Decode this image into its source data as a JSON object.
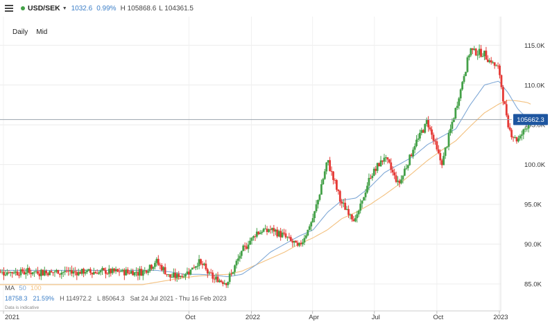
{
  "header": {
    "symbol": "USD/SEK",
    "change": "1032.6",
    "change_pct": "0.99%",
    "high": "H 105868.6",
    "low": "L 104361.5"
  },
  "controls": {
    "interval": "Daily",
    "price_type": "Mid"
  },
  "indicator": {
    "name": "MA",
    "periods": [
      "50",
      "100"
    ]
  },
  "stats": {
    "change": "18758.3",
    "change_pct": "21.59%",
    "high": "H 114972.2",
    "low": "L 85064.3",
    "range": "Sat 24 Jul 2021 - Thu 16 Feb 2023"
  },
  "note": "Data is indicative",
  "colors": {
    "up": "#43a047",
    "down": "#e53935",
    "ma50": "#7fa8d6",
    "ma100": "#f3c07e",
    "accent": "#1e56a0",
    "positive": "#3b7ec7"
  },
  "chart_data": {
    "type": "candlestick",
    "last_price": "105662.3",
    "y_ticks": [
      "115.0K",
      "110.0K",
      "105.0K",
      "100.0K",
      "95.0K",
      "90.0K",
      "85.0K"
    ],
    "ylim": [
      81600,
      118600
    ],
    "x_ticks": [
      "2021",
      "Oct",
      "2022",
      "Apr",
      "Jul",
      "Oct",
      "2023"
    ],
    "dates": [
      "2021-07-24",
      "2021-08-14",
      "2021-09-04",
      "2021-09-25",
      "2021-10-16",
      "2021-11-06",
      "2021-11-27",
      "2021-12-18",
      "2022-01-08",
      "2022-01-29",
      "2022-02-19",
      "2022-03-12",
      "2022-04-02",
      "2022-04-23",
      "2022-05-14",
      "2022-06-04",
      "2022-06-25",
      "2022-07-16",
      "2022-08-06",
      "2022-08-27",
      "2022-09-17",
      "2022-10-08",
      "2022-10-29",
      "2022-11-19",
      "2022-12-10",
      "2022-12-31",
      "2023-01-14",
      "2023-01-28",
      "2023-02-11",
      "2023-02-16"
    ],
    "close": [
      86500,
      87800,
      85800,
      86200,
      87800,
      85600,
      85300,
      89000,
      91500,
      91800,
      91000,
      89600,
      93200,
      100500,
      95000,
      93000,
      98500,
      101000,
      97500,
      102000,
      105500,
      100000,
      107000,
      114500,
      113800,
      112000,
      104500,
      103000,
      105000,
      105662
    ],
    "ma50": [
      86700,
      86700,
      86500,
      86200,
      86200,
      86100,
      85900,
      86200,
      87400,
      89000,
      90000,
      91000,
      91800,
      94000,
      95500,
      95800,
      97200,
      99000,
      100000,
      101000,
      102500,
      103500,
      104500,
      107500,
      110000,
      110500,
      109000,
      107000,
      105800,
      105600
    ],
    "ma100": [
      84900,
      85200,
      85500,
      85800,
      86000,
      86100,
      86200,
      86600,
      87400,
      88200,
      89000,
      90000,
      90800,
      91800,
      93200,
      94000,
      95000,
      96200,
      97500,
      99000,
      100500,
      101800,
      103000,
      104800,
      106500,
      107600,
      108100,
      108000,
      107800,
      107600
    ]
  }
}
